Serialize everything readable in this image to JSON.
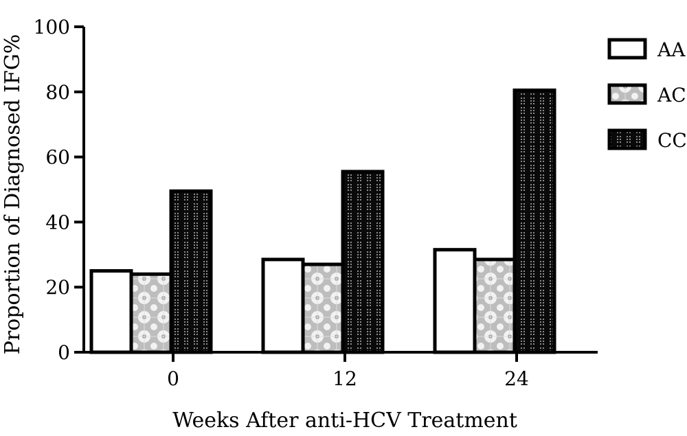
{
  "chart_data": {
    "type": "bar",
    "title": "",
    "xlabel": "Weeks After anti-HCV Treatment",
    "ylabel": "Proportion of Diagnosed IFG%",
    "categories": [
      "0",
      "12",
      "24"
    ],
    "ylim": [
      0,
      100
    ],
    "yticks": [
      "0",
      "20",
      "40",
      "60",
      "80",
      "100"
    ],
    "grid": false,
    "legend_position": "top-right",
    "series": [
      {
        "name": "AA",
        "values": [
          25,
          28.5,
          31.5
        ],
        "fill": "#ffffff",
        "pattern": "none"
      },
      {
        "name": "AC",
        "values": [
          24,
          27,
          28.5
        ],
        "fill": "#cccccc",
        "pattern": "light-dotted"
      },
      {
        "name": "CC",
        "values": [
          49.5,
          55.5,
          80.5
        ],
        "fill": "#111111",
        "pattern": "dark-dotted"
      }
    ]
  }
}
